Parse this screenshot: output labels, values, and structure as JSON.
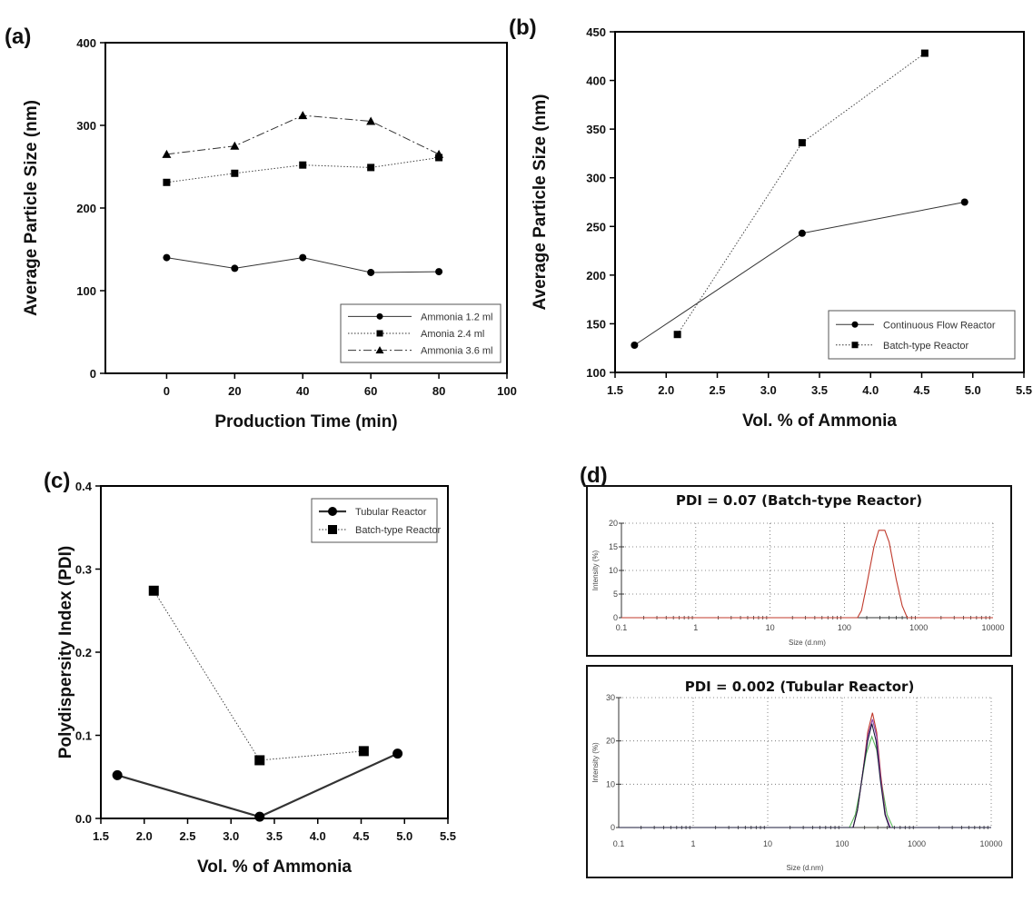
{
  "chart_data": [
    {
      "panel": "(a)",
      "type": "line",
      "xlabel": "Production Time (min)",
      "ylabel": "Average Particle Size (nm)",
      "xlim": [
        -18,
        100
      ],
      "ylim": [
        0,
        400
      ],
      "xticks": [
        0,
        20,
        40,
        60,
        80,
        100
      ],
      "yticks": [
        0,
        100,
        200,
        300,
        400
      ],
      "grid": false,
      "legend_position": "bottom-right",
      "series": [
        {
          "name": "Ammonia 1.2 ml",
          "marker": "circle",
          "line": "solid",
          "x": [
            0,
            20,
            40,
            60,
            80
          ],
          "y": [
            140,
            127,
            140,
            122,
            123
          ]
        },
        {
          "name": "Amonia 2.4 ml",
          "marker": "square",
          "line": "dotted",
          "x": [
            0,
            20,
            40,
            60,
            80
          ],
          "y": [
            231,
            242,
            252,
            249,
            261
          ]
        },
        {
          "name": "Ammonia 3.6 ml",
          "marker": "triangle",
          "line": "dash-dot",
          "x": [
            0,
            20,
            40,
            60,
            80
          ],
          "y": [
            265,
            275,
            312,
            305,
            265
          ]
        }
      ]
    },
    {
      "panel": "(b)",
      "type": "line",
      "xlabel": "Vol. % of Ammonia",
      "ylabel": "Average Particle Size (nm)",
      "xlim": [
        1.5,
        5.5
      ],
      "ylim": [
        100,
        450
      ],
      "xticks": [
        "1.5",
        "2.0",
        "2.5",
        "3.0",
        "3.5",
        "4.0",
        "4.5",
        "5.0",
        "5.5"
      ],
      "yticks": [
        100,
        150,
        200,
        250,
        300,
        350,
        400,
        450
      ],
      "grid": false,
      "legend_position": "bottom-right",
      "series": [
        {
          "name": "Continuous Flow Reactor",
          "marker": "circle",
          "line": "solid",
          "x": [
            1.69,
            3.33,
            4.92
          ],
          "y": [
            128,
            243,
            275
          ]
        },
        {
          "name": "Batch-type Reactor",
          "marker": "square",
          "line": "dotted",
          "x": [
            2.11,
            3.33,
            4.53
          ],
          "y": [
            139,
            336,
            428
          ]
        }
      ]
    },
    {
      "panel": "(c)",
      "type": "line",
      "xlabel": "Vol. % of Ammonia",
      "ylabel": "Polydispersity Index (PDI)",
      "xlim": [
        1.5,
        5.5
      ],
      "ylim": [
        0,
        0.4
      ],
      "xticks": [
        "1.5",
        "2.0",
        "2.5",
        "3.0",
        "3.5",
        "4.0",
        "4.5",
        "5.0",
        "5.5"
      ],
      "yticks": [
        "0.0",
        "0.1",
        "0.2",
        "0.3",
        "0.4"
      ],
      "grid": false,
      "legend_position": "top-right",
      "series": [
        {
          "name": "Tubular Reactor",
          "marker": "circle",
          "line": "solid-thick",
          "x": [
            1.69,
            3.33,
            4.92
          ],
          "y": [
            0.052,
            0.002,
            0.078
          ]
        },
        {
          "name": "Batch-type Reactor",
          "marker": "square",
          "line": "dotted",
          "x": [
            2.11,
            3.33,
            4.53
          ],
          "y": [
            0.274,
            0.07,
            0.081
          ]
        }
      ]
    },
    {
      "panel": "(d)",
      "type": "line",
      "title": "PDI = 0.07 (Batch-type Reactor)",
      "xlabel": "Size (d.nm)",
      "ylabel": "Intensity (%)",
      "xscale": "log",
      "xlim": [
        0.1,
        10000
      ],
      "ylim": [
        0,
        20
      ],
      "xticks": [
        "0.1",
        "1",
        "10",
        "100",
        "1000",
        "10000"
      ],
      "yticks": [
        0,
        5,
        10,
        15,
        20
      ],
      "grid": true,
      "series": [
        {
          "color": "#c0392b",
          "x": [
            0.1,
            150,
            170,
            200,
            250,
            290,
            350,
            400,
            500,
            600,
            700,
            10000
          ],
          "y": [
            0,
            0,
            1.5,
            7,
            15,
            18.5,
            18.5,
            16,
            8,
            2.5,
            0,
            0
          ]
        }
      ]
    },
    {
      "panel": "",
      "type": "line",
      "title": "PDI = 0.002 (Tubular Reactor)",
      "xlabel": "Size (d.nm)",
      "ylabel": "Intensity (%)",
      "xscale": "log",
      "xlim": [
        0.1,
        10000
      ],
      "ylim": [
        0,
        30
      ],
      "xticks": [
        "0.1",
        "1",
        "10",
        "100",
        "1000",
        "10000"
      ],
      "yticks": [
        0,
        10,
        20,
        30
      ],
      "grid": true,
      "series": [
        {
          "color": "#5cb85c",
          "x": [
            0.1,
            125,
            150,
            180,
            210,
            250,
            290,
            340,
            400,
            480,
            10000
          ],
          "y": [
            0,
            0,
            3,
            10,
            17,
            21,
            18,
            10,
            3,
            0,
            0
          ]
        },
        {
          "color": "#c0392b",
          "x": [
            0.1,
            140,
            160,
            190,
            220,
            255,
            290,
            330,
            380,
            440,
            10000
          ],
          "y": [
            0,
            0,
            4,
            13,
            22,
            26.5,
            22,
            12,
            3,
            0,
            0
          ]
        },
        {
          "color": "#8e44ad",
          "x": [
            0.1,
            140,
            160,
            190,
            220,
            255,
            290,
            330,
            380,
            440,
            10000
          ],
          "y": [
            0,
            0,
            4,
            13,
            21,
            25,
            21,
            11,
            3,
            0,
            0
          ]
        },
        {
          "color": "#1a1a3a",
          "x": [
            0.1,
            140,
            160,
            190,
            220,
            250,
            285,
            325,
            375,
            430,
            10000
          ],
          "y": [
            0,
            0,
            4,
            13,
            20,
            24,
            20,
            11,
            3,
            0,
            0
          ]
        }
      ]
    }
  ]
}
